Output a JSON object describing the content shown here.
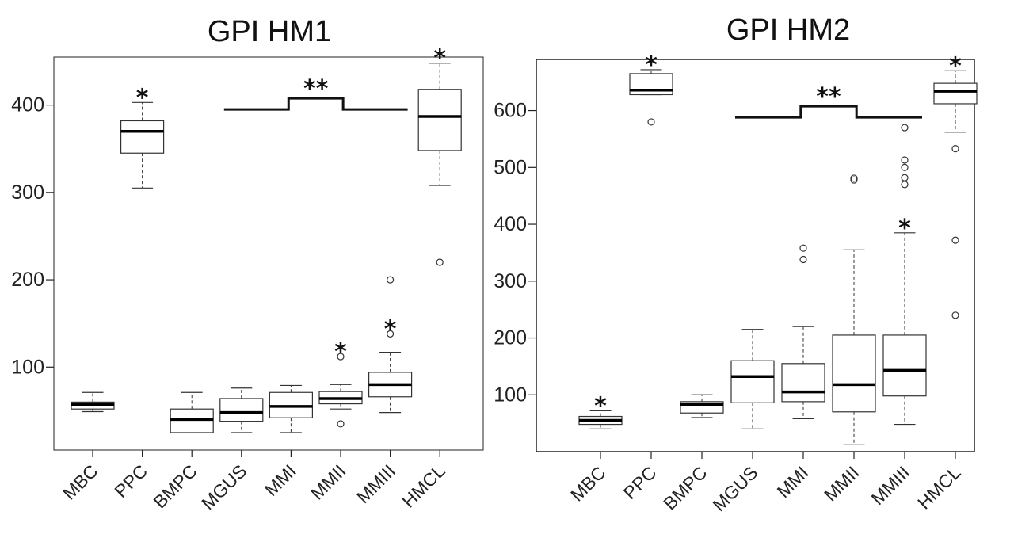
{
  "chart_data": [
    {
      "type": "box",
      "title": "GPI HM1",
      "xlabel": "",
      "ylabel": "",
      "ylim": [
        5,
        455
      ],
      "yticks": [
        100,
        200,
        300,
        400
      ],
      "ytick_labels": [
        "100",
        "200",
        "300",
        "400"
      ],
      "categories": [
        "MBC",
        "PPC",
        "BMPC",
        "MGUS",
        "MMI",
        "MMII",
        "MMIII",
        "HMCL"
      ],
      "boxes": [
        {
          "category": "MBC",
          "whisker_low": 49,
          "q1": 52,
          "median": 57,
          "q3": 60,
          "whisker_high": 71,
          "outliers": [],
          "star": ""
        },
        {
          "category": "PPC",
          "whisker_low": 305,
          "q1": 345,
          "median": 370,
          "q3": 382,
          "whisker_high": 403,
          "outliers": [],
          "star": "*"
        },
        {
          "category": "BMPC",
          "whisker_low": 25,
          "q1": 25,
          "median": 40,
          "q3": 52,
          "whisker_high": 71,
          "outliers": [],
          "star": ""
        },
        {
          "category": "MGUS",
          "whisker_low": 25,
          "q1": 38,
          "median": 48,
          "q3": 64,
          "whisker_high": 76,
          "outliers": [],
          "star": ""
        },
        {
          "category": "MMI",
          "whisker_low": 25,
          "q1": 42,
          "median": 55,
          "q3": 71,
          "whisker_high": 79,
          "outliers": [],
          "star": ""
        },
        {
          "category": "MMII",
          "whisker_low": 52,
          "q1": 58,
          "median": 64,
          "q3": 72,
          "whisker_high": 80,
          "outliers": [
            35,
            112
          ],
          "star": "*"
        },
        {
          "category": "MMIII",
          "whisker_low": 48,
          "q1": 66,
          "median": 80,
          "q3": 94,
          "whisker_high": 117,
          "outliers": [
            138,
            200
          ],
          "star": "*"
        },
        {
          "category": "HMCL",
          "whisker_low": 308,
          "q1": 348,
          "median": 387,
          "q3": 418,
          "whisker_high": 448,
          "outliers": [
            220
          ],
          "star": "*"
        }
      ],
      "bracket": {
        "from": "MGUS",
        "to": "MMIII",
        "value": 395,
        "label": "**"
      }
    },
    {
      "type": "box",
      "title": "GPI HM2",
      "xlabel": "",
      "ylabel": "",
      "ylim": [
        0,
        690
      ],
      "yticks": [
        100,
        200,
        300,
        400,
        500,
        600
      ],
      "ytick_labels": [
        "100",
        "200",
        "300",
        "400",
        "500",
        "600"
      ],
      "categories": [
        "MBC",
        "PPC",
        "BMPC",
        "MGUS",
        "MMI",
        "MMII",
        "MMIII",
        "HMCL"
      ],
      "boxes": [
        {
          "category": "MBC",
          "whisker_low": 40,
          "q1": 48,
          "median": 55,
          "q3": 62,
          "whisker_high": 72,
          "outliers": [],
          "star": "*"
        },
        {
          "category": "PPC",
          "whisker_low": 628,
          "q1": 628,
          "median": 636,
          "q3": 665,
          "whisker_high": 672,
          "outliers": [
            580
          ],
          "star": "*"
        },
        {
          "category": "BMPC",
          "whisker_low": 60,
          "q1": 68,
          "median": 83,
          "q3": 88,
          "whisker_high": 100,
          "outliers": [],
          "star": ""
        },
        {
          "category": "MGUS",
          "whisker_low": 40,
          "q1": 86,
          "median": 132,
          "q3": 160,
          "whisker_high": 215,
          "outliers": [],
          "star": ""
        },
        {
          "category": "MMI",
          "whisker_low": 58,
          "q1": 88,
          "median": 105,
          "q3": 155,
          "whisker_high": 220,
          "outliers": [
            338,
            358
          ],
          "star": ""
        },
        {
          "category": "MMII",
          "whisker_low": 12,
          "q1": 70,
          "median": 118,
          "q3": 205,
          "whisker_high": 355,
          "outliers": [
            478,
            481
          ],
          "star": ""
        },
        {
          "category": "MMIII",
          "whisker_low": 48,
          "q1": 98,
          "median": 143,
          "q3": 205,
          "whisker_high": 385,
          "outliers": [
            470,
            482,
            500,
            513,
            570
          ],
          "star": "*"
        },
        {
          "category": "HMCL",
          "whisker_low": 562,
          "q1": 612,
          "median": 634,
          "q3": 648,
          "whisker_high": 670,
          "outliers": [
            240,
            372,
            533
          ],
          "star": "*"
        }
      ],
      "bracket": {
        "from": "MGUS",
        "to": "MMIII",
        "value": 588,
        "label": "**"
      }
    }
  ]
}
